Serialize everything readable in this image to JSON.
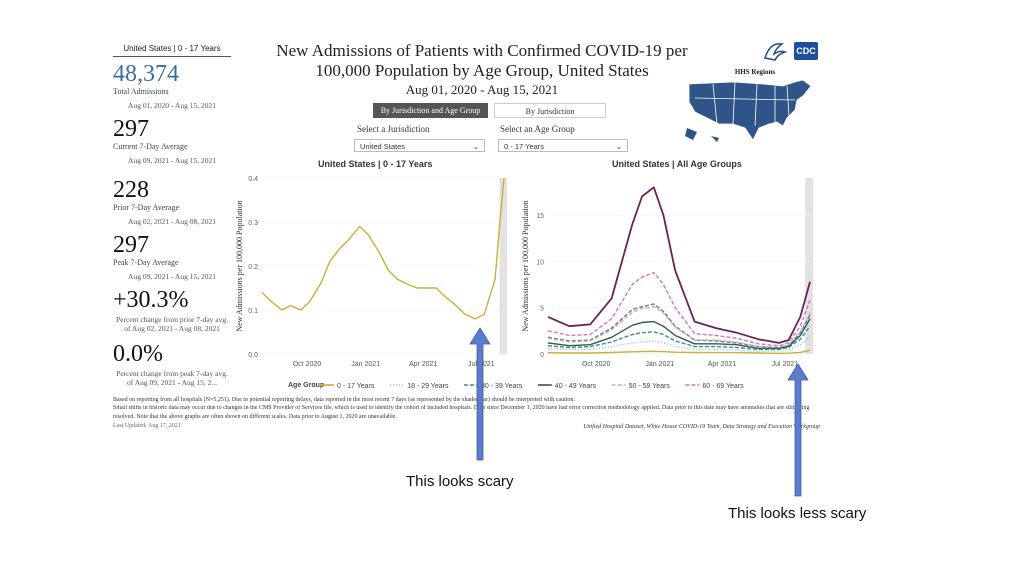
{
  "kpi": {
    "header": "United States | 0 - 17 Years",
    "total_value": "48,374",
    "total_label": "Total Admissions",
    "total_dates": "Aug 01, 2020 - Aug 15, 2021",
    "current_value": "297",
    "current_label": "Current 7-Day Average",
    "current_dates": "Aug 09, 2021 - Aug 15, 2021",
    "prior_value": "228",
    "prior_label": "Prior 7-Day Average",
    "prior_dates": "Aug 02, 2021 - Aug 08, 2021",
    "peak_value": "297",
    "peak_label": "Peak 7-Day Average",
    "peak_dates": "Aug 09, 2021 - Aug 15, 2021",
    "pct_prior_value": "+30.3%",
    "pct_prior_label": "Percent change from prior 7-day avg. of Aug 02, 2021 - Aug 08, 2021",
    "pct_peak_value": "0.0%",
    "pct_peak_label": "Percent change from peak 7-day avg. of Aug 09, 2021 - Aug 15, 2..."
  },
  "header": {
    "title_line1": "New Admissions of Patients with Confirmed COVID-19 per",
    "title_line2": "100,000 Population by Age Group, United States",
    "date_range": "Aug 01, 2020 - Aug 15, 2021",
    "logo_text": "CDC",
    "map_title": "HHS Regions"
  },
  "controls": {
    "tab_active": "By Jurisdiction and Age Group",
    "tab_inactive": "By Jurisdiction",
    "jurisdiction_label": "Select a Jurisdiction",
    "jurisdiction_value": "United States",
    "age_label": "Select an Age Group",
    "age_value": "0 - 17 Years"
  },
  "legend": {
    "title": "Age Group",
    "items": [
      {
        "label": "0 - 17 Years",
        "color": "#c9b037",
        "dash": ""
      },
      {
        "label": "18 - 29 Years",
        "color": "#7fc6c6",
        "dash": "1,2"
      },
      {
        "label": "30 - 39 Years",
        "color": "#3a8f8a",
        "dash": "4,2"
      },
      {
        "label": "40 - 49 Years",
        "color": "#2f5c4f",
        "dash": ""
      },
      {
        "label": "50 - 59 Years",
        "color": "#b8b8c8",
        "dash": "4,2"
      },
      {
        "label": "60 - 69 Years",
        "color": "#c87ac8",
        "dash": "4,2"
      },
      {
        "label": "70+ Years",
        "color": "#6a2257",
        "dash": ""
      },
      {
        "label": "All Ages",
        "color": "#777777",
        "dash": "4,2"
      }
    ]
  },
  "footnote": {
    "line1": "Based on reporting from all hospitals (N=5,251). Due to potential reporting delays, data reported in the most recent 7 days (as represented by the shaded bar) should be interpreted with caution.",
    "line2": "Small shifts in historic data may occur due to changes in the CMS Provider of Services file, which is used to identify the cohort of included hospitals. Data since December 1, 2020 have had error correction methodology applied. Data prior to this date may have anomalies that are still being",
    "line3": "resolved. Note that the above graphs are often shown on different scales. Data prior to August 1, 2020 are unavailable.",
    "updated": "Last Updated: Aug 17, 2021",
    "source": "Unified Hospital Dataset, White House COVID-19 Team, Data Strategy and Execution Workgroup"
  },
  "annotations": {
    "left_text": "This looks scary",
    "right_text": "This looks less scary",
    "arrow_color": "#5b7ccc"
  },
  "chart_data": [
    {
      "type": "line",
      "title": "United States | 0 - 17 Years",
      "ylabel": "New Admissions per 100,000 Population",
      "xlabel": "",
      "x_ticks": [
        "Oct 2020",
        "Jan 2021",
        "Apr 2021",
        "Jul 2021"
      ],
      "y_ticks": [
        "0.0",
        "0.1",
        "0.2",
        "0.3",
        "0.4"
      ],
      "ylim": [
        0,
        0.4
      ],
      "x": [
        "2020-08-01",
        "2020-08-15",
        "2020-09-01",
        "2020-09-15",
        "2020-10-01",
        "2020-10-15",
        "2020-11-01",
        "2020-11-15",
        "2020-12-01",
        "2020-12-15",
        "2021-01-01",
        "2021-01-15",
        "2021-02-01",
        "2021-02-15",
        "2021-03-01",
        "2021-03-15",
        "2021-04-01",
        "2021-04-15",
        "2021-05-01",
        "2021-05-15",
        "2021-06-01",
        "2021-06-15",
        "2021-07-01",
        "2021-07-15",
        "2021-08-01",
        "2021-08-08",
        "2021-08-15"
      ],
      "series": [
        {
          "name": "0 - 17 Years",
          "color": "#c9b037",
          "values": [
            0.14,
            0.12,
            0.1,
            0.11,
            0.1,
            0.12,
            0.16,
            0.21,
            0.24,
            0.26,
            0.29,
            0.27,
            0.23,
            0.19,
            0.17,
            0.16,
            0.15,
            0.15,
            0.15,
            0.13,
            0.11,
            0.09,
            0.08,
            0.09,
            0.17,
            0.29,
            0.4
          ]
        }
      ]
    },
    {
      "type": "line",
      "title": "United States | All Age Groups",
      "ylabel": "New Admissions per 100,000 Population",
      "xlabel": "",
      "x_ticks": [
        "Oct 2020",
        "Jan 2021",
        "Apr 2021",
        "Jul 2021"
      ],
      "y_ticks": [
        "0",
        "5",
        "10",
        "15"
      ],
      "ylim": [
        0,
        19
      ],
      "x": [
        "2020-08-01",
        "2020-09-01",
        "2020-10-01",
        "2020-11-01",
        "2020-12-01",
        "2020-12-15",
        "2021-01-01",
        "2021-01-15",
        "2021-02-01",
        "2021-03-01",
        "2021-04-01",
        "2021-05-01",
        "2021-06-01",
        "2021-07-01",
        "2021-07-15",
        "2021-08-01",
        "2021-08-15"
      ],
      "series": [
        {
          "name": "70+ Years",
          "color": "#6a2257",
          "dash": "",
          "values": [
            4.0,
            3.0,
            3.2,
            6.0,
            14.0,
            17.0,
            18.0,
            15.0,
            9.0,
            3.5,
            2.8,
            2.3,
            1.6,
            1.2,
            1.5,
            4.0,
            7.8
          ]
        },
        {
          "name": "60 - 69 Years",
          "color": "#c87ac8",
          "dash": "4,2",
          "values": [
            2.5,
            2.0,
            2.1,
            3.8,
            7.5,
            8.3,
            8.8,
            7.5,
            5.0,
            2.2,
            2.0,
            1.7,
            1.1,
            0.9,
            1.2,
            3.0,
            5.8
          ]
        },
        {
          "name": "All Ages",
          "color": "#777777",
          "dash": "4,2",
          "values": [
            1.8,
            1.4,
            1.5,
            2.8,
            4.8,
            5.1,
            5.4,
            4.6,
            3.0,
            1.5,
            1.4,
            1.2,
            0.8,
            0.7,
            0.9,
            2.3,
            4.2
          ]
        },
        {
          "name": "50 - 59 Years",
          "color": "#b8b8c8",
          "dash": "4,2",
          "values": [
            1.7,
            1.3,
            1.4,
            2.6,
            4.5,
            4.9,
            5.1,
            4.4,
            2.9,
            1.5,
            1.5,
            1.3,
            0.8,
            0.7,
            1.0,
            2.4,
            4.5
          ]
        },
        {
          "name": "40 - 49 Years",
          "color": "#2f5c4f",
          "dash": "",
          "values": [
            1.2,
            0.9,
            1.0,
            1.8,
            3.1,
            3.4,
            3.5,
            3.0,
            2.0,
            1.1,
            1.1,
            1.0,
            0.6,
            0.6,
            0.8,
            2.0,
            3.8
          ]
        },
        {
          "name": "30 - 39 Years",
          "color": "#3a8f8a",
          "dash": "4,2",
          "values": [
            0.9,
            0.7,
            0.8,
            1.3,
            2.1,
            2.3,
            2.4,
            2.1,
            1.4,
            0.8,
            0.8,
            0.7,
            0.5,
            0.5,
            0.7,
            1.6,
            3.0
          ]
        },
        {
          "name": "18 - 29 Years",
          "color": "#7fc6c6",
          "dash": "1,2",
          "values": [
            0.6,
            0.5,
            0.5,
            0.8,
            1.2,
            1.3,
            1.4,
            1.2,
            0.8,
            0.5,
            0.5,
            0.4,
            0.3,
            0.3,
            0.4,
            1.0,
            1.8
          ]
        },
        {
          "name": "0 - 17 Years",
          "color": "#c9b037",
          "dash": "",
          "values": [
            0.14,
            0.11,
            0.11,
            0.16,
            0.24,
            0.26,
            0.29,
            0.25,
            0.19,
            0.16,
            0.15,
            0.15,
            0.11,
            0.08,
            0.09,
            0.17,
            0.4
          ]
        }
      ]
    }
  ]
}
